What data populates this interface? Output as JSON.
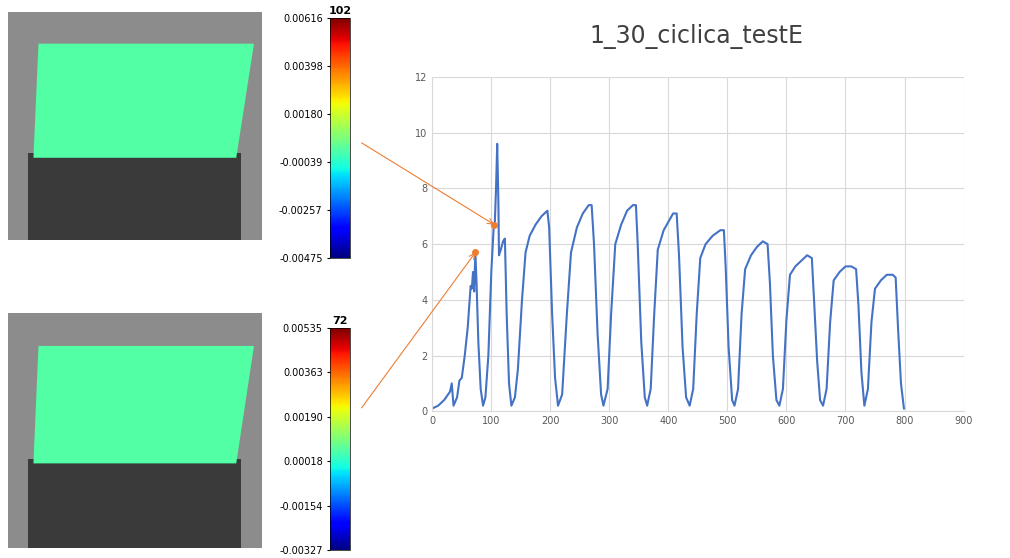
{
  "chart_data": {
    "type": "line",
    "title": "1_30_ciclica_testE",
    "x": [
      0,
      10,
      20,
      30,
      33,
      36,
      42,
      46,
      50,
      55,
      60,
      63,
      65,
      67,
      69,
      71,
      73,
      75,
      78,
      82,
      86,
      90,
      95,
      100,
      104,
      106,
      108,
      110,
      112,
      113,
      116,
      120,
      123,
      126,
      130,
      134,
      140,
      145,
      152,
      158,
      165,
      175,
      185,
      195,
      198,
      203,
      208,
      213,
      220,
      228,
      235,
      245,
      255,
      265,
      270,
      274,
      280,
      286,
      290,
      297,
      303,
      310,
      320,
      330,
      340,
      345,
      348,
      354,
      360,
      364,
      370,
      376,
      382,
      392,
      400,
      408,
      414,
      418,
      424,
      430,
      436,
      442,
      448,
      454,
      463,
      475,
      488,
      494,
      497,
      502,
      508,
      512,
      518,
      524,
      530,
      540,
      550,
      560,
      568,
      572,
      577,
      583,
      588,
      594,
      600,
      606,
      615,
      625,
      635,
      643,
      646,
      652,
      657,
      662,
      668,
      674,
      680,
      690,
      700,
      710,
      718,
      722,
      727,
      732,
      738,
      744,
      750,
      760,
      770,
      780,
      785,
      789,
      794,
      799
    ],
    "values": [
      0.1,
      0.2,
      0.4,
      0.7,
      1.0,
      0.2,
      0.5,
      1.1,
      1.2,
      2.0,
      3.0,
      3.9,
      4.5,
      4.4,
      5.0,
      4.3,
      5.7,
      4.6,
      2.5,
      0.8,
      0.2,
      0.5,
      2.0,
      5.0,
      6.6,
      6.8,
      8.0,
      9.6,
      7.5,
      5.6,
      5.8,
      6.1,
      6.2,
      3.5,
      1.0,
      0.2,
      0.5,
      1.5,
      4.0,
      5.7,
      6.3,
      6.7,
      7.0,
      7.2,
      6.6,
      3.5,
      1.2,
      0.2,
      0.6,
      3.5,
      5.7,
      6.6,
      7.1,
      7.4,
      7.4,
      6.0,
      2.8,
      0.6,
      0.2,
      0.8,
      3.5,
      6.0,
      6.7,
      7.2,
      7.4,
      7.4,
      6.0,
      2.5,
      0.5,
      0.2,
      0.8,
      3.5,
      5.8,
      6.5,
      6.8,
      7.1,
      7.1,
      5.6,
      2.3,
      0.5,
      0.2,
      0.8,
      3.5,
      5.5,
      6.0,
      6.3,
      6.5,
      6.5,
      5.2,
      2.3,
      0.4,
      0.2,
      0.8,
      3.5,
      5.1,
      5.6,
      5.9,
      6.1,
      6.0,
      4.6,
      2.0,
      0.4,
      0.2,
      0.8,
      3.3,
      4.9,
      5.2,
      5.4,
      5.6,
      5.5,
      4.3,
      1.8,
      0.4,
      0.2,
      0.8,
      3.2,
      4.7,
      5.0,
      5.2,
      5.2,
      5.1,
      3.8,
      1.4,
      0.2,
      0.8,
      3.2,
      4.4,
      4.7,
      4.9,
      4.9,
      4.8,
      3.0,
      1.0,
      0.1
    ],
    "color": "#4472c4",
    "xlim": [
      0,
      900
    ],
    "xticks": [
      0,
      100,
      200,
      300,
      400,
      500,
      600,
      700,
      800,
      900
    ],
    "ylim": [
      0,
      12
    ],
    "yticks": [
      0,
      2,
      4,
      6,
      8,
      10,
      12
    ],
    "grid": true
  },
  "images": [
    {
      "title": 102,
      "point": {
        "x": 105,
        "y": 6.7,
        "color": "#ed7d31"
      },
      "colorbar": {
        "lim": [
          -0.00475,
          0.00616
        ],
        "ticks": [
          0.00616,
          0.00398,
          {
            "value": 0.0018,
            "label": "0.00180"
          },
          -0.00039,
          -0.00257,
          -0.00475
        ]
      }
    },
    {
      "title": 72,
      "point": {
        "x": 73,
        "y": 5.7,
        "color": "#ed7d31"
      },
      "colorbar": {
        "lim": [
          -0.00327,
          0.00535
        ],
        "ticks": [
          0.00535,
          0.00363,
          {
            "value": 0.0019,
            "label": "0.00190"
          },
          0.00018,
          -0.00154,
          -0.00327
        ]
      }
    }
  ]
}
